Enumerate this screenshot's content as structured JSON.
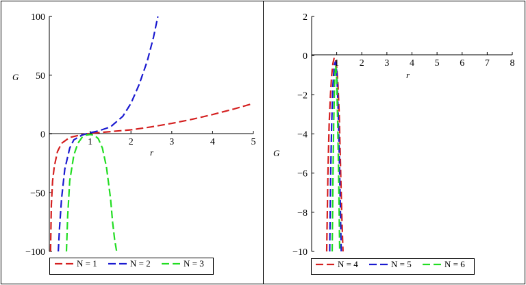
{
  "chart_data": [
    {
      "type": "line",
      "xlabel": "r",
      "ylabel": "G",
      "xlim": [
        0,
        5
      ],
      "ylim": [
        -100,
        100
      ],
      "x_ticks": [
        "1",
        "2",
        "3",
        "4",
        "5"
      ],
      "y_ticks": [
        "100",
        "50",
        "0",
        "−50",
        "−100"
      ],
      "y_tick_values": [
        100,
        50,
        0,
        -50,
        -100
      ],
      "grid": false,
      "legend_placement": "bottom",
      "line_style": "dashed",
      "series": [
        {
          "name": "N = 1",
          "color": "#d42020",
          "x": [
            0.03,
            0.05,
            0.08,
            0.12,
            0.2,
            0.3,
            0.5,
            0.8,
            1.0,
            1.5,
            2.0,
            2.5,
            3.0,
            3.5,
            4.0,
            4.5,
            5.0
          ],
          "y": [
            -100,
            -60,
            -40,
            -28,
            -15,
            -8,
            -3,
            -0.5,
            0.5,
            2,
            3.5,
            6,
            9,
            12.5,
            16.5,
            21,
            26
          ]
        },
        {
          "name": "N = 2",
          "color": "#1a1ad0",
          "x": [
            0.22,
            0.25,
            0.3,
            0.38,
            0.5,
            0.6,
            0.8,
            1.0,
            1.2,
            1.5,
            1.8,
            2.0,
            2.2,
            2.4,
            2.55,
            2.66
          ],
          "y": [
            -100,
            -80,
            -55,
            -30,
            -12,
            -5,
            -1,
            1,
            2.5,
            6,
            15,
            26,
            42,
            62,
            82,
            100
          ]
        },
        {
          "name": "N = 3",
          "color": "#22dd22",
          "x": [
            0.42,
            0.45,
            0.5,
            0.6,
            0.7,
            0.8,
            0.9,
            1.0,
            1.1,
            1.2,
            1.3,
            1.4,
            1.5,
            1.55,
            1.6,
            1.65
          ],
          "y": [
            -100,
            -70,
            -40,
            -18,
            -8,
            -3,
            -1,
            -0.5,
            -1,
            -4,
            -12,
            -28,
            -55,
            -75,
            -90,
            -100
          ]
        }
      ]
    },
    {
      "type": "line",
      "xlabel": "r",
      "ylabel": "G",
      "xlim": [
        0,
        8
      ],
      "ylim": [
        -10,
        2
      ],
      "x_ticks": [
        "1",
        "2",
        "3",
        "4",
        "5",
        "6",
        "7",
        "8"
      ],
      "y_ticks": [
        "2",
        "0",
        "−2",
        "−4",
        "−6",
        "−8",
        "−10"
      ],
      "y_tick_values": [
        2,
        0,
        -2,
        -4,
        -6,
        -8,
        -10
      ],
      "grid": false,
      "legend_placement": "bottom",
      "line_style": "dashed",
      "series": [
        {
          "name": "N = 4",
          "color": "#d42020",
          "x": [
            0.6,
            0.65,
            0.7,
            0.75,
            0.8,
            0.85,
            0.9,
            0.95,
            1.0,
            1.05,
            1.1,
            1.15,
            1.2,
            1.25
          ],
          "y": [
            -10,
            -6,
            -3.5,
            -2,
            -1,
            -0.4,
            -0.1,
            -0.2,
            -0.6,
            -1.5,
            -3,
            -5.5,
            -8,
            -10
          ]
        },
        {
          "name": "N = 5",
          "color": "#1a1ad0",
          "x": [
            0.72,
            0.76,
            0.8,
            0.85,
            0.9,
            0.95,
            1.0,
            1.05,
            1.1,
            1.14,
            1.18
          ],
          "y": [
            -10,
            -6,
            -3.5,
            -1.5,
            -0.5,
            -0.3,
            -0.8,
            -2.5,
            -5,
            -7.5,
            -10
          ]
        },
        {
          "name": "N = 6",
          "color": "#22dd22",
          "x": [
            0.82,
            0.85,
            0.88,
            0.92,
            0.96,
            1.0,
            1.04,
            1.08,
            1.12
          ],
          "y": [
            -10,
            -6.5,
            -3.5,
            -1.2,
            -0.5,
            -1.2,
            -3.5,
            -6.5,
            -10
          ]
        }
      ]
    }
  ]
}
